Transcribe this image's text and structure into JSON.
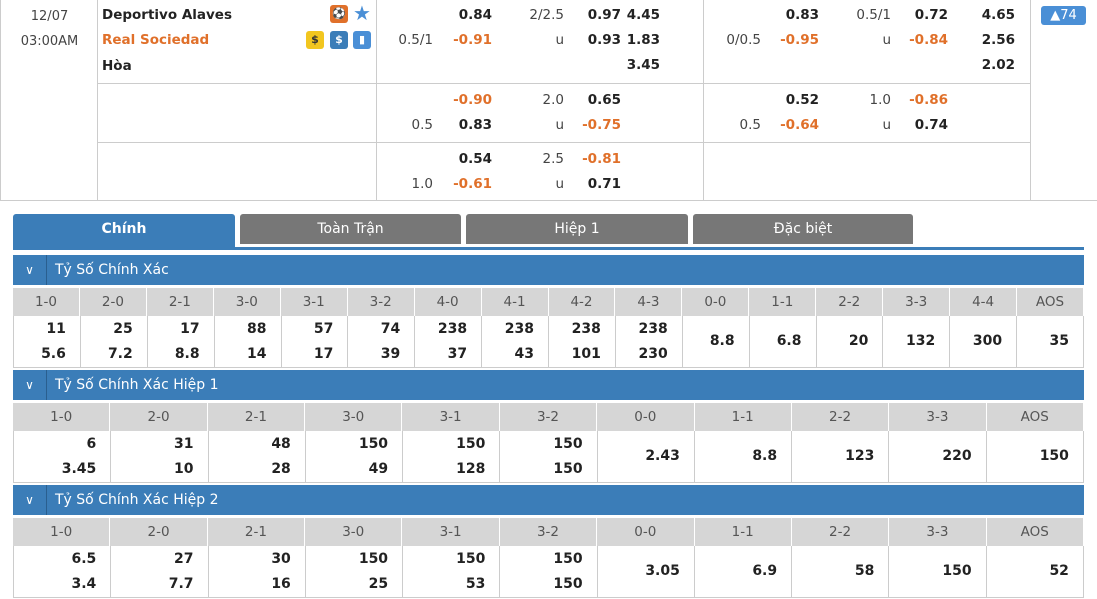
{
  "match": {
    "date": "12/07",
    "time": "03:00AM",
    "home": "Deportivo Alaves",
    "away": "Real Sociedad",
    "draw": "Hòa",
    "badge": "▲74",
    "icons": [
      "live-player-icon",
      "star-icon",
      "coin-icon",
      "dollar-icon",
      "stats-icon"
    ],
    "colors": {
      "away": "#e0702a",
      "accent": "#3b7db8",
      "negative": "#e0702a"
    }
  },
  "odds": [
    {
      "full": [
        [
          "",
          "0.84",
          "2/2.5",
          "0.97",
          "4.45"
        ],
        [
          "0.5/1",
          "-0.91",
          "u",
          "0.93",
          "1.83"
        ],
        [
          "",
          "",
          "",
          "",
          "3.45"
        ]
      ],
      "half": [
        [
          "",
          "0.83",
          "0.5/1",
          "0.72",
          "4.65"
        ],
        [
          "0/0.5",
          "-0.95",
          "u",
          "-0.84",
          "2.56"
        ],
        [
          "",
          "",
          "",
          "",
          "2.02"
        ]
      ]
    },
    {
      "full": [
        [
          "",
          "-0.90",
          "2.0",
          "0.65",
          ""
        ],
        [
          "0.5",
          "0.83",
          "u",
          "-0.75",
          ""
        ]
      ],
      "half": [
        [
          "",
          "0.52",
          "1.0",
          "-0.86",
          ""
        ],
        [
          "0.5",
          "-0.64",
          "u",
          "0.74",
          ""
        ]
      ]
    },
    {
      "full": [
        [
          "",
          "0.54",
          "2.5",
          "-0.81",
          ""
        ],
        [
          "1.0",
          "-0.61",
          "u",
          "0.71",
          ""
        ]
      ],
      "half": [
        [
          "",
          "",
          "",
          "",
          ""
        ],
        [
          "",
          "",
          "",
          "",
          ""
        ]
      ]
    }
  ],
  "tabs": [
    "Chính",
    "Toàn Trận",
    "Hiệp 1",
    "Đặc biệt"
  ],
  "sections": [
    {
      "title": "Tỷ Số Chính Xác",
      "headers": [
        "1-0",
        "2-0",
        "2-1",
        "3-0",
        "3-1",
        "3-2",
        "4-0",
        "4-1",
        "4-2",
        "4-3",
        "0-0",
        "1-1",
        "2-2",
        "3-3",
        "4-4",
        "AOS"
      ],
      "values": [
        [
          "11",
          "5.6"
        ],
        [
          "25",
          "7.2"
        ],
        [
          "17",
          "8.8"
        ],
        [
          "88",
          "14"
        ],
        [
          "57",
          "17"
        ],
        [
          "74",
          "39"
        ],
        [
          "238",
          "37"
        ],
        [
          "238",
          "43"
        ],
        [
          "238",
          "101"
        ],
        [
          "238",
          "230"
        ],
        [
          "8.8"
        ],
        [
          "6.8"
        ],
        [
          "20"
        ],
        [
          "132"
        ],
        [
          "300"
        ],
        [
          "35"
        ]
      ]
    },
    {
      "title": "Tỷ Số Chính Xác Hiệp 1",
      "headers": [
        "1-0",
        "2-0",
        "2-1",
        "3-0",
        "3-1",
        "3-2",
        "0-0",
        "1-1",
        "2-2",
        "3-3",
        "AOS"
      ],
      "values": [
        [
          "6",
          "3.45"
        ],
        [
          "31",
          "10"
        ],
        [
          "48",
          "28"
        ],
        [
          "150",
          "49"
        ],
        [
          "150",
          "128"
        ],
        [
          "150",
          "150"
        ],
        [
          "2.43"
        ],
        [
          "8.8"
        ],
        [
          "123"
        ],
        [
          "220"
        ],
        [
          "150"
        ]
      ]
    },
    {
      "title": "Tỷ Số Chính Xác Hiệp 2",
      "headers": [
        "1-0",
        "2-0",
        "2-1",
        "3-0",
        "3-1",
        "3-2",
        "0-0",
        "1-1",
        "2-2",
        "3-3",
        "AOS"
      ],
      "values": [
        [
          "6.5",
          "3.4"
        ],
        [
          "27",
          "7.7"
        ],
        [
          "30",
          "16"
        ],
        [
          "150",
          "25"
        ],
        [
          "150",
          "53"
        ],
        [
          "150",
          "150"
        ],
        [
          "3.05"
        ],
        [
          "6.9"
        ],
        [
          "58"
        ],
        [
          "150"
        ],
        [
          "52"
        ]
      ]
    }
  ]
}
